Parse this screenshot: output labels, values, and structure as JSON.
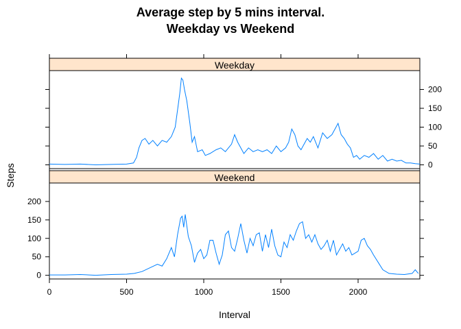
{
  "chart_data": {
    "type": "line",
    "title": "Average step by 5 mins interval.",
    "subtitle": "Weekday vs Weekend",
    "xlabel": "Interval",
    "ylabel": "Steps",
    "xlim": [
      0,
      2400
    ],
    "ylim": [
      -10,
      250
    ],
    "x_ticks": [
      0,
      500,
      1000,
      1500,
      2000
    ],
    "y_ticks": [
      0,
      50,
      100,
      150,
      200
    ],
    "line_color": "#0080ff",
    "strip_color": "#ffe5cc",
    "panels": [
      {
        "name": "Weekday",
        "x": [
          0,
          100,
          200,
          300,
          400,
          500,
          545,
          565,
          580,
          600,
          620,
          645,
          670,
          700,
          730,
          760,
          790,
          815,
          835,
          845,
          855,
          865,
          875,
          890,
          910,
          925,
          940,
          960,
          990,
          1010,
          1040,
          1080,
          1110,
          1140,
          1180,
          1200,
          1220,
          1240,
          1260,
          1290,
          1320,
          1350,
          1380,
          1410,
          1440,
          1470,
          1500,
          1530,
          1550,
          1570,
          1590,
          1610,
          1630,
          1650,
          1670,
          1690,
          1710,
          1740,
          1770,
          1800,
          1830,
          1850,
          1870,
          1880,
          1890,
          1910,
          1930,
          1950,
          1970,
          1990,
          2010,
          2040,
          2070,
          2100,
          2130,
          2160,
          2190,
          2220,
          2250,
          2280,
          2310,
          2340,
          2370,
          2400
        ],
        "values": [
          2,
          1,
          2,
          0,
          1,
          2,
          5,
          20,
          45,
          65,
          70,
          55,
          65,
          50,
          65,
          60,
          75,
          100,
          160,
          190,
          230,
          225,
          200,
          170,
          110,
          60,
          75,
          35,
          40,
          25,
          30,
          40,
          45,
          35,
          55,
          80,
          60,
          45,
          30,
          45,
          35,
          40,
          35,
          40,
          30,
          50,
          35,
          45,
          60,
          95,
          80,
          50,
          40,
          55,
          70,
          60,
          75,
          45,
          85,
          70,
          80,
          95,
          110,
          95,
          80,
          70,
          55,
          45,
          20,
          25,
          15,
          25,
          20,
          30,
          15,
          25,
          10,
          15,
          10,
          12,
          5,
          5,
          3,
          2
        ]
      },
      {
        "name": "Weekend",
        "x": [
          0,
          100,
          200,
          300,
          400,
          500,
          550,
          600,
          650,
          700,
          730,
          760,
          790,
          810,
          830,
          850,
          860,
          870,
          880,
          900,
          920,
          940,
          960,
          980,
          1000,
          1020,
          1040,
          1060,
          1080,
          1100,
          1120,
          1140,
          1160,
          1180,
          1200,
          1220,
          1240,
          1260,
          1280,
          1300,
          1320,
          1340,
          1360,
          1380,
          1400,
          1420,
          1440,
          1460,
          1480,
          1500,
          1520,
          1540,
          1560,
          1580,
          1600,
          1620,
          1640,
          1660,
          1680,
          1700,
          1720,
          1740,
          1760,
          1780,
          1800,
          1820,
          1840,
          1860,
          1880,
          1900,
          1920,
          1940,
          1960,
          1980,
          2000,
          2020,
          2040,
          2060,
          2080,
          2100,
          2130,
          2160,
          2200,
          2250,
          2300,
          2350,
          2370,
          2390
        ],
        "values": [
          1,
          1,
          2,
          0,
          2,
          3,
          5,
          10,
          20,
          30,
          25,
          45,
          75,
          50,
          110,
          155,
          160,
          130,
          165,
          105,
          80,
          35,
          60,
          70,
          45,
          55,
          95,
          95,
          60,
          30,
          55,
          110,
          120,
          75,
          65,
          100,
          140,
          95,
          60,
          100,
          80,
          110,
          115,
          65,
          110,
          75,
          125,
          80,
          55,
          50,
          90,
          75,
          110,
          95,
          120,
          140,
          145,
          100,
          110,
          90,
          110,
          85,
          70,
          80,
          95,
          65,
          95,
          55,
          70,
          85,
          65,
          75,
          55,
          60,
          65,
          95,
          100,
          80,
          70,
          55,
          35,
          15,
          5,
          3,
          2,
          5,
          15,
          5
        ]
      }
    ]
  }
}
